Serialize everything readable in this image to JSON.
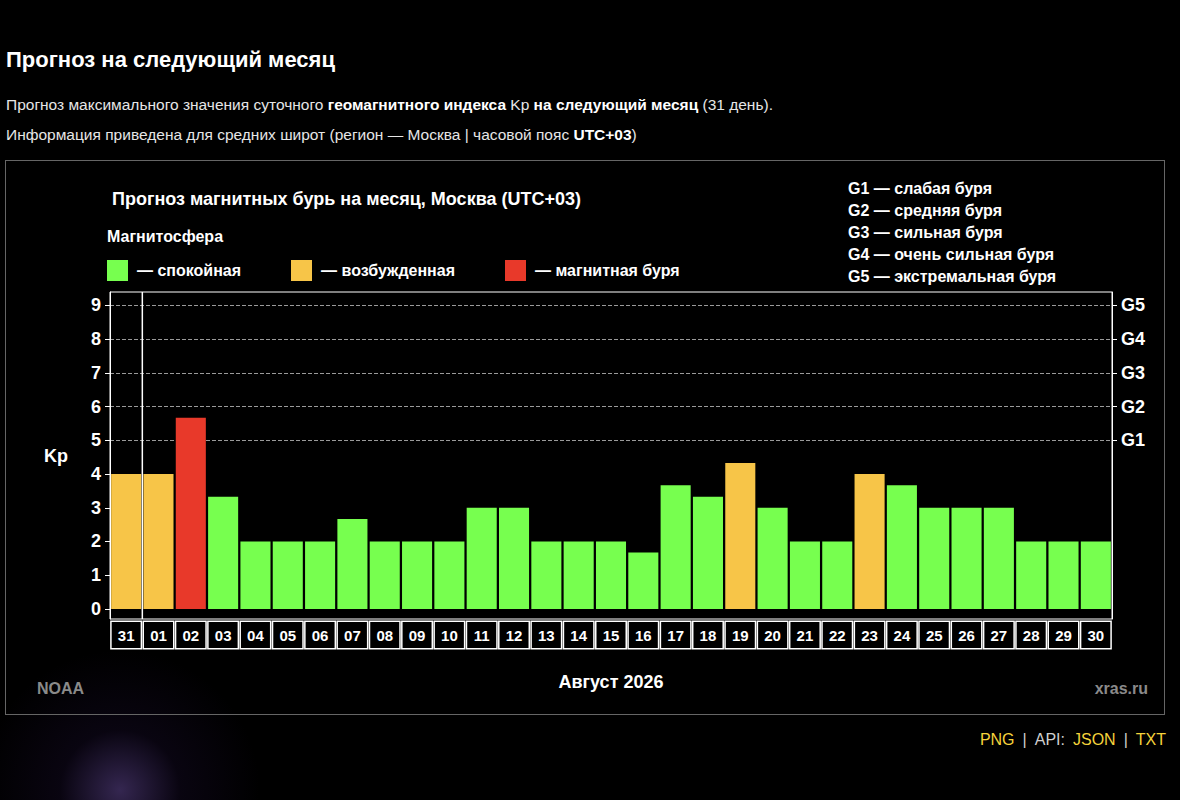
{
  "page": {
    "heading": "Прогноз на следующий месяц",
    "description": [
      [
        "Прогноз максимального значения суточного ",
        "геомагнитного индекса",
        " Kp ",
        "на следующий месяц",
        " (31 день)."
      ],
      [
        "Информация приведена для средних широт (регион — Москва | часовой пояс ",
        "UTC+03",
        ")"
      ]
    ],
    "footer": [
      {
        "text": "PNG",
        "link": true
      },
      {
        "text": "|"
      },
      {
        "text": "API:"
      },
      {
        "text": "JSON",
        "link": true
      },
      {
        "text": "|"
      },
      {
        "text": "TXT",
        "link": true
      }
    ]
  },
  "chart_data": {
    "type": "bar",
    "title": "Прогноз магнитных бурь на месяц, Москва (UTC+03)",
    "legend_title": "Магнитосфера",
    "legend_items": [
      {
        "label": "— спокойная",
        "color": "#77ff4f"
      },
      {
        "label": "— возбужденная",
        "color": "#f7c548"
      },
      {
        "label": "— магнитная буря",
        "color": "#e8392a"
      }
    ],
    "annotations": [
      "G1 — слабая буря",
      "G2 — средняя буря",
      "G3 — сильная буря",
      "G4 — очень сильная буря",
      "G5 — экстремальная буря"
    ],
    "categories": [
      "31",
      "01",
      "02",
      "03",
      "04",
      "05",
      "06",
      "07",
      "08",
      "09",
      "10",
      "11",
      "12",
      "13",
      "14",
      "15",
      "16",
      "17",
      "18",
      "19",
      "20",
      "21",
      "22",
      "23",
      "24",
      "25",
      "26",
      "27",
      "28",
      "29",
      "30"
    ],
    "values": [
      4,
      4,
      5.67,
      3.33,
      2,
      2,
      2,
      2.67,
      2,
      2,
      2,
      3,
      3,
      2,
      2,
      2,
      1.67,
      3.67,
      3.33,
      4.33,
      3,
      2,
      2,
      4,
      3.67,
      3,
      3,
      3,
      2,
      2,
      2
    ],
    "colors": [
      "#f7c548",
      "#f7c548",
      "#e8392a",
      "#77ff4f",
      "#77ff4f",
      "#77ff4f",
      "#77ff4f",
      "#77ff4f",
      "#77ff4f",
      "#77ff4f",
      "#77ff4f",
      "#77ff4f",
      "#77ff4f",
      "#77ff4f",
      "#77ff4f",
      "#77ff4f",
      "#77ff4f",
      "#77ff4f",
      "#77ff4f",
      "#f7c548",
      "#77ff4f",
      "#77ff4f",
      "#77ff4f",
      "#f7c548",
      "#77ff4f",
      "#77ff4f",
      "#77ff4f",
      "#77ff4f",
      "#77ff4f",
      "#77ff4f",
      "#77ff4f"
    ],
    "x_label": "Август 2026",
    "y_label": "Kp",
    "ylim": [
      -0.3,
      9.4
    ],
    "yticks": [
      0,
      1,
      2,
      3,
      4,
      5,
      6,
      7,
      8,
      9
    ],
    "y2lim": [
      -0.3,
      9.4
    ],
    "y2ticks": [
      {
        "value": 5,
        "label": "G1"
      },
      {
        "value": 6,
        "label": "G2"
      },
      {
        "value": 7,
        "label": "G3"
      },
      {
        "value": 8,
        "label": "G4"
      },
      {
        "value": 9,
        "label": "G5"
      }
    ],
    "grid": true,
    "legend": "top-left",
    "source": "NOAA",
    "site": "xras.ru"
  }
}
